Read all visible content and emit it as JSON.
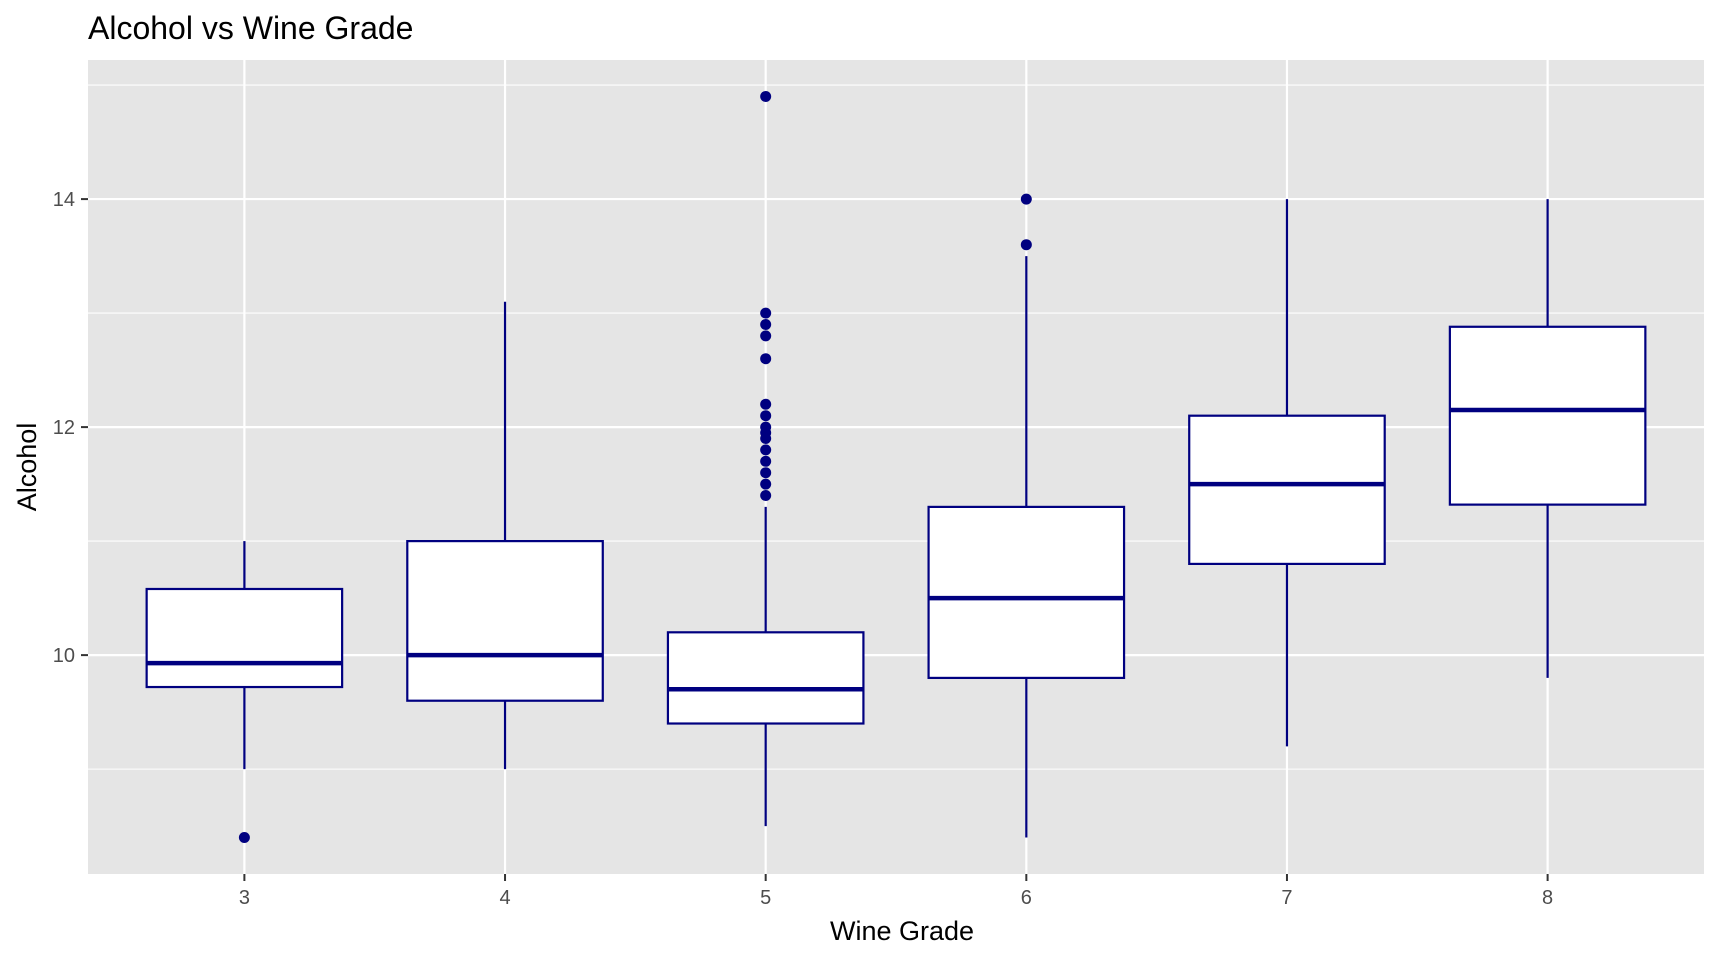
{
  "chart_data": {
    "type": "boxplot",
    "title": "Alcohol vs Wine Grade",
    "xlabel": "Wine Grade",
    "ylabel": "Alcohol",
    "categories": [
      "3",
      "4",
      "5",
      "6",
      "7",
      "8"
    ],
    "ylim": [
      8.08,
      15.22
    ],
    "y_ticks": [
      10,
      12,
      14
    ],
    "y_tick_labels": [
      "10",
      "12",
      "14"
    ],
    "y_minor_gridlines": [
      9,
      11,
      13,
      15
    ],
    "grid": true,
    "legend": "none",
    "colors": {
      "panel_background": "#e5e5e5",
      "gridline": "#ffffff",
      "box_stroke": "#000080",
      "box_fill": "#ffffff",
      "outlier": "#000080"
    },
    "boxes": [
      {
        "category": "3",
        "lower_whisker": 9.0,
        "q1": 9.72,
        "median": 9.93,
        "q3": 10.58,
        "upper_whisker": 11.0,
        "outliers": [
          8.4
        ]
      },
      {
        "category": "4",
        "lower_whisker": 9.0,
        "q1": 9.6,
        "median": 10.0,
        "q3": 11.0,
        "upper_whisker": 13.1,
        "outliers": []
      },
      {
        "category": "5",
        "lower_whisker": 8.5,
        "q1": 9.4,
        "median": 9.7,
        "q3": 10.2,
        "upper_whisker": 11.3,
        "outliers": [
          11.4,
          11.5,
          11.6,
          11.7,
          11.8,
          11.9,
          11.95,
          12.0,
          12.1,
          12.2,
          12.6,
          12.8,
          12.9,
          13.0,
          14.9
        ]
      },
      {
        "category": "6",
        "lower_whisker": 8.4,
        "q1": 9.8,
        "median": 10.5,
        "q3": 11.3,
        "upper_whisker": 13.5,
        "outliers": [
          13.6,
          14.0
        ]
      },
      {
        "category": "7",
        "lower_whisker": 9.2,
        "q1": 10.8,
        "median": 11.5,
        "q3": 12.1,
        "upper_whisker": 14.0,
        "outliers": []
      },
      {
        "category": "8",
        "lower_whisker": 9.8,
        "q1": 11.32,
        "median": 12.15,
        "q3": 12.88,
        "upper_whisker": 14.0,
        "outliers": []
      }
    ]
  }
}
